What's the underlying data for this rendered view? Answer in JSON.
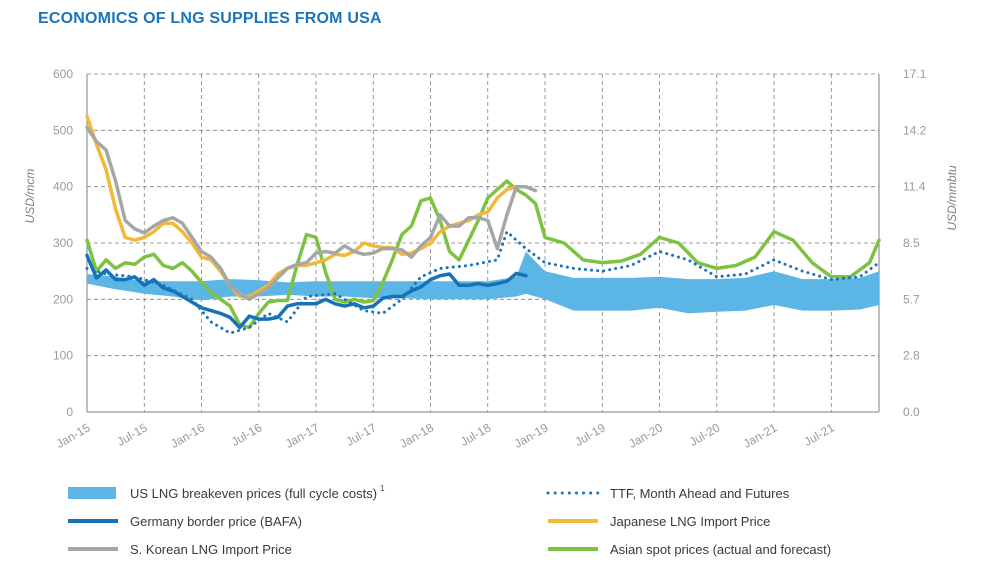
{
  "title": "ECONOMICS OF LNG SUPPLIES FROM USA",
  "chart_data": {
    "type": "line",
    "ylabel_left": "USD/mcm",
    "ylabel_right": "USD/mmbtu",
    "ylim_left": [
      0,
      600
    ],
    "ylim_right": [
      0.0,
      17.1
    ],
    "yticks_left": [
      "0",
      "100",
      "200",
      "300",
      "400",
      "500",
      "600"
    ],
    "yticks_right": [
      "0.0",
      "2.8",
      "5.7",
      "8.5",
      "11.4",
      "14.2",
      "17.1"
    ],
    "x_start": "2015-01",
    "x_end": "2021-12",
    "x_ticks": [
      "Jan-15",
      "Jul-15",
      "Jan-16",
      "Jul-16",
      "Jan-17",
      "Jul-17",
      "Jan-18",
      "Jul-18",
      "Jan-19",
      "Jul-19",
      "Jan-20",
      "Jul-20",
      "Jan-21",
      "Jul-21"
    ],
    "grid": true,
    "legend_position": "bottom",
    "colors": {
      "band": "#5bb6e6",
      "ttf": "#1b75bb",
      "germany": "#1672b8",
      "japan": "#f2b837",
      "korea": "#a6a6a6",
      "asian": "#7dc242"
    },
    "band": {
      "name": "US LNG breakeven prices (full cycle costs)",
      "superscript": "1",
      "months": [
        "2015-01",
        "2015-04",
        "2015-07",
        "2015-10",
        "2016-01",
        "2016-04",
        "2016-07",
        "2016-10",
        "2017-01",
        "2017-04",
        "2017-07",
        "2017-10",
        "2018-01",
        "2018-04",
        "2018-07",
        "2018-10",
        "2018-11",
        "2019-01",
        "2019-04",
        "2019-07",
        "2019-10",
        "2020-01",
        "2020-04",
        "2020-07",
        "2020-10",
        "2021-01",
        "2021-04",
        "2021-07",
        "2021-10",
        "2021-12"
      ],
      "low": [
        228,
        218,
        210,
        205,
        198,
        205,
        205,
        208,
        205,
        205,
        202,
        202,
        200,
        200,
        200,
        205,
        210,
        200,
        180,
        180,
        180,
        185,
        175,
        178,
        180,
        190,
        180,
        180,
        182,
        190
      ],
      "high": [
        245,
        240,
        232,
        232,
        232,
        236,
        234,
        230,
        232,
        232,
        232,
        232,
        232,
        232,
        232,
        240,
        285,
        250,
        238,
        238,
        238,
        240,
        236,
        236,
        238,
        250,
        236,
        236,
        238,
        250
      ]
    },
    "series": [
      {
        "key": "ttf",
        "name": "TTF, Month Ahead and Futures",
        "style": "dotted",
        "x": [
          "2015-01",
          "2015-03",
          "2015-06",
          "2015-09",
          "2015-12",
          "2016-02",
          "2016-04",
          "2016-06",
          "2016-08",
          "2016-10",
          "2016-12",
          "2017-03",
          "2017-06",
          "2017-08",
          "2017-10",
          "2017-12",
          "2018-02",
          "2018-05",
          "2018-08",
          "2018-09",
          "2018-11",
          "2019-01",
          "2019-04",
          "2019-07",
          "2019-10",
          "2020-01",
          "2020-04",
          "2020-07",
          "2020-10",
          "2021-01",
          "2021-04",
          "2021-07",
          "2021-10",
          "2021-12"
        ],
        "y": [
          255,
          245,
          240,
          225,
          200,
          160,
          140,
          150,
          175,
          160,
          205,
          210,
          180,
          175,
          200,
          240,
          255,
          260,
          270,
          320,
          290,
          265,
          255,
          250,
          260,
          285,
          270,
          240,
          245,
          270,
          250,
          235,
          240,
          265
        ]
      },
      {
        "key": "germany",
        "name": "Germany border price (BAFA)",
        "style": "solid",
        "x": [
          "2015-01",
          "2015-02",
          "2015-03",
          "2015-04",
          "2015-05",
          "2015-06",
          "2015-07",
          "2015-08",
          "2015-09",
          "2015-10",
          "2015-11",
          "2015-12",
          "2016-01",
          "2016-02",
          "2016-03",
          "2016-04",
          "2016-05",
          "2016-06",
          "2016-07",
          "2016-08",
          "2016-09",
          "2016-10",
          "2016-11",
          "2016-12",
          "2017-01",
          "2017-02",
          "2017-03",
          "2017-04",
          "2017-05",
          "2017-06",
          "2017-07",
          "2017-08",
          "2017-09",
          "2017-10",
          "2017-11",
          "2017-12",
          "2018-01",
          "2018-02",
          "2018-03",
          "2018-04",
          "2018-05",
          "2018-06",
          "2018-07",
          "2018-08",
          "2018-09",
          "2018-10",
          "2018-11"
        ],
        "y": [
          278,
          238,
          252,
          235,
          235,
          240,
          225,
          235,
          220,
          215,
          205,
          195,
          185,
          180,
          175,
          168,
          150,
          170,
          165,
          165,
          168,
          188,
          192,
          192,
          192,
          200,
          192,
          188,
          192,
          185,
          188,
          202,
          205,
          205,
          215,
          222,
          235,
          242,
          245,
          225,
          225,
          228,
          225,
          228,
          232,
          246,
          242
        ]
      },
      {
        "key": "japan",
        "name": "Japanese LNG Import Price",
        "style": "solid",
        "x": [
          "2015-01",
          "2015-02",
          "2015-03",
          "2015-04",
          "2015-05",
          "2015-06",
          "2015-07",
          "2015-08",
          "2015-09",
          "2015-10",
          "2015-11",
          "2015-12",
          "2016-01",
          "2016-02",
          "2016-03",
          "2016-04",
          "2016-05",
          "2016-06",
          "2016-07",
          "2016-08",
          "2016-09",
          "2016-10",
          "2016-11",
          "2016-12",
          "2017-01",
          "2017-02",
          "2017-03",
          "2017-04",
          "2017-05",
          "2017-06",
          "2017-07",
          "2017-08",
          "2017-09",
          "2017-10",
          "2017-11",
          "2017-12",
          "2018-01",
          "2018-02",
          "2018-03",
          "2018-04",
          "2018-05",
          "2018-06",
          "2018-07",
          "2018-08",
          "2018-09",
          "2018-10"
        ],
        "y": [
          525,
          475,
          430,
          360,
          310,
          305,
          310,
          320,
          335,
          335,
          320,
          300,
          275,
          270,
          250,
          225,
          205,
          205,
          215,
          225,
          245,
          255,
          260,
          260,
          265,
          270,
          280,
          278,
          285,
          300,
          295,
          292,
          292,
          280,
          282,
          290,
          300,
          320,
          330,
          335,
          340,
          350,
          355,
          380,
          395,
          400
        ]
      },
      {
        "key": "korea",
        "name": "S. Korean LNG Import Price",
        "style": "solid",
        "x": [
          "2015-01",
          "2015-02",
          "2015-03",
          "2015-04",
          "2015-05",
          "2015-06",
          "2015-07",
          "2015-08",
          "2015-09",
          "2015-10",
          "2015-11",
          "2015-12",
          "2016-01",
          "2016-02",
          "2016-03",
          "2016-04",
          "2016-05",
          "2016-06",
          "2016-07",
          "2016-08",
          "2016-09",
          "2016-10",
          "2016-11",
          "2016-12",
          "2017-01",
          "2017-02",
          "2017-03",
          "2017-04",
          "2017-05",
          "2017-06",
          "2017-07",
          "2017-08",
          "2017-09",
          "2017-10",
          "2017-11",
          "2017-12",
          "2018-01",
          "2018-02",
          "2018-03",
          "2018-04",
          "2018-05",
          "2018-06",
          "2018-07",
          "2018-08",
          "2018-09",
          "2018-10",
          "2018-11",
          "2018-12"
        ],
        "y": [
          505,
          480,
          465,
          410,
          340,
          325,
          318,
          330,
          340,
          345,
          335,
          310,
          285,
          275,
          255,
          225,
          210,
          200,
          210,
          220,
          238,
          255,
          262,
          265,
          282,
          285,
          282,
          295,
          285,
          280,
          282,
          290,
          290,
          288,
          275,
          295,
          310,
          350,
          330,
          330,
          345,
          345,
          340,
          290,
          350,
          400,
          400,
          393
        ]
      },
      {
        "key": "asian",
        "name": "Asian spot prices (actual and forecast)",
        "style": "solid",
        "x": [
          "2015-01",
          "2015-02",
          "2015-03",
          "2015-04",
          "2015-05",
          "2015-06",
          "2015-07",
          "2015-08",
          "2015-09",
          "2015-10",
          "2015-11",
          "2015-12",
          "2016-01",
          "2016-02",
          "2016-03",
          "2016-04",
          "2016-05",
          "2016-06",
          "2016-07",
          "2016-08",
          "2016-09",
          "2016-10",
          "2016-11",
          "2016-12",
          "2017-01",
          "2017-02",
          "2017-03",
          "2017-04",
          "2017-05",
          "2017-06",
          "2017-07",
          "2017-08",
          "2017-09",
          "2017-10",
          "2017-11",
          "2017-12",
          "2018-01",
          "2018-02",
          "2018-03",
          "2018-04",
          "2018-05",
          "2018-06",
          "2018-07",
          "2018-08",
          "2018-09",
          "2018-10",
          "2018-11",
          "2018-12",
          "2019-01",
          "2019-03",
          "2019-05",
          "2019-07",
          "2019-09",
          "2019-11",
          "2020-01",
          "2020-03",
          "2020-05",
          "2020-07",
          "2020-09",
          "2020-11",
          "2021-01",
          "2021-03",
          "2021-05",
          "2021-07",
          "2021-09",
          "2021-11",
          "2021-12"
        ],
        "y": [
          305,
          250,
          270,
          255,
          265,
          262,
          275,
          280,
          260,
          255,
          265,
          250,
          230,
          212,
          200,
          188,
          155,
          150,
          175,
          195,
          198,
          198,
          260,
          315,
          310,
          248,
          200,
          195,
          200,
          195,
          198,
          230,
          270,
          315,
          330,
          375,
          380,
          340,
          285,
          270,
          305,
          340,
          380,
          395,
          410,
          395,
          385,
          370,
          310,
          300,
          270,
          265,
          268,
          280,
          310,
          300,
          265,
          255,
          260,
          275,
          320,
          305,
          265,
          240,
          240,
          265,
          305
        ]
      }
    ],
    "legend": [
      {
        "key": "band",
        "label": "US LNG breakeven prices (full cycle costs)"
      },
      {
        "key": "ttf",
        "label": "TTF, Month Ahead and Futures"
      },
      {
        "key": "germany",
        "label": "Germany border price (BAFA)"
      },
      {
        "key": "japan",
        "label": "Japanese LNG Import Price"
      },
      {
        "key": "korea",
        "label": "S. Korean LNG Import Price"
      },
      {
        "key": "asian",
        "label": "Asian spot prices (actual and forecast)"
      }
    ]
  }
}
